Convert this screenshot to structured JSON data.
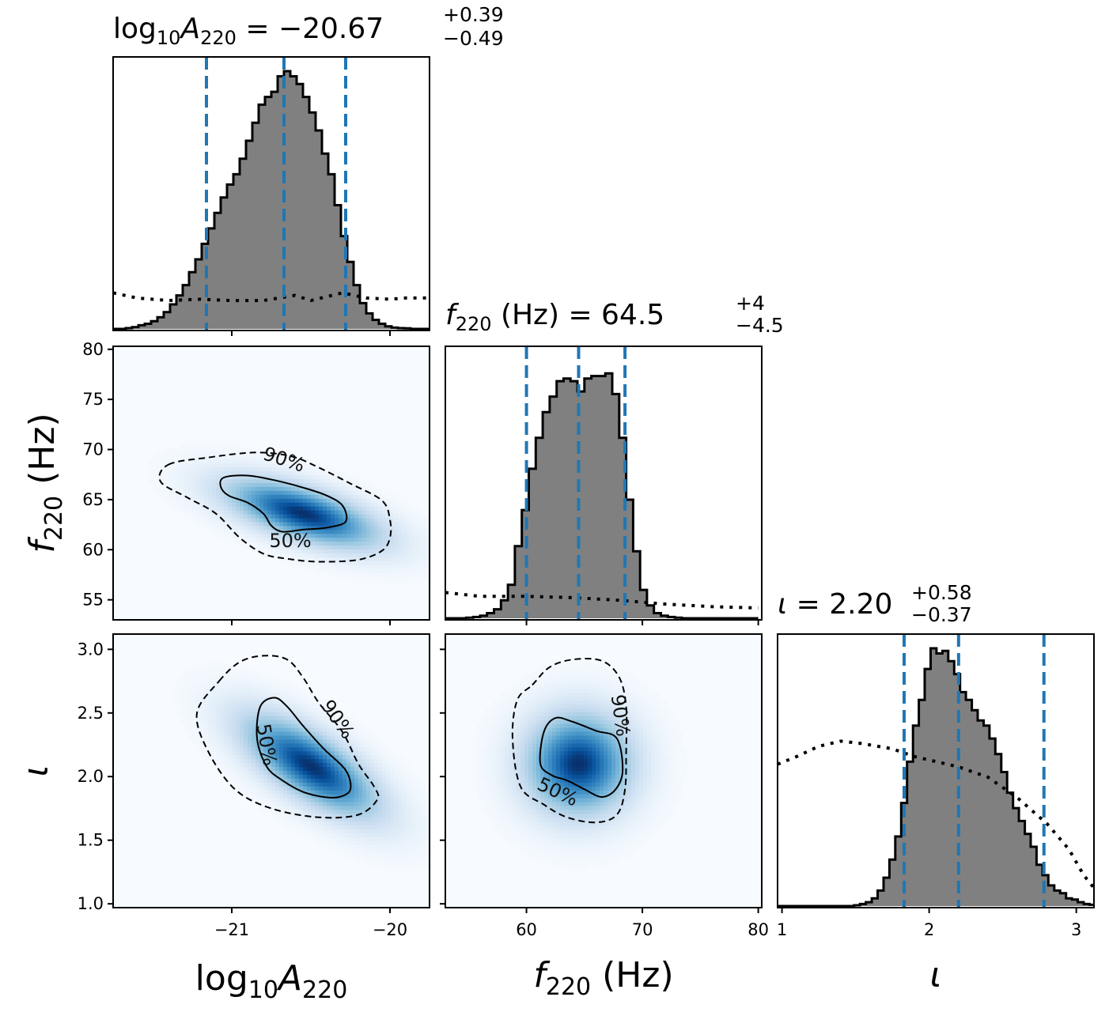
{
  "colors": {
    "hist_fill": "#808080",
    "hist_edge": "#000000",
    "quantile_line": "#1f77b4",
    "density_low": "#f7fbff",
    "density_high": "#08306b"
  },
  "chart_data": {
    "type": "corner",
    "parameters": [
      {
        "id": "logA",
        "title_lhs": "log",
        "title_sub1": "10",
        "title_sym": "A",
        "title_sub2": "220",
        "title_eq": " = −20.67",
        "title_sup": "+0.39",
        "title_inf": "−0.49",
        "axis_label_lhs": "log",
        "axis_label_sub1": "10",
        "axis_label_sym": "A",
        "axis_label_sub2": "220",
        "range": [
          -21.75,
          -19.75
        ],
        "ticks": [
          -21,
          -20
        ],
        "tick_labels": [
          "−21",
          "−20"
        ],
        "quantiles": [
          -21.16,
          -20.67,
          -20.28
        ],
        "hist_bins": [
          -21.75,
          -21.71,
          -21.67,
          -21.63,
          -21.59,
          -21.55,
          -21.51,
          -21.47,
          -21.43,
          -21.39,
          -21.35,
          -21.31,
          -21.27,
          -21.23,
          -21.19,
          -21.15,
          -21.11,
          -21.07,
          -21.03,
          -20.99,
          -20.95,
          -20.91,
          -20.87,
          -20.83,
          -20.79,
          -20.75,
          -20.71,
          -20.67,
          -20.63,
          -20.59,
          -20.55,
          -20.51,
          -20.47,
          -20.43,
          -20.39,
          -20.35,
          -20.31,
          -20.27,
          -20.23,
          -20.19,
          -20.15,
          -20.11,
          -20.07,
          -20.03,
          -19.99,
          -19.95,
          -19.91,
          -19.87,
          -19.83,
          -19.79,
          -19.75
        ],
        "hist_counts": [
          0.0,
          0.0,
          0.003,
          0.007,
          0.014,
          0.02,
          0.03,
          0.045,
          0.065,
          0.095,
          0.13,
          0.17,
          0.22,
          0.27,
          0.33,
          0.39,
          0.45,
          0.51,
          0.56,
          0.6,
          0.66,
          0.73,
          0.8,
          0.87,
          0.9,
          0.92,
          0.98,
          1.0,
          0.98,
          0.95,
          0.9,
          0.84,
          0.77,
          0.68,
          0.6,
          0.48,
          0.36,
          0.26,
          0.17,
          0.1,
          0.06,
          0.035,
          0.02,
          0.01,
          0.005,
          0.003,
          0.002,
          0.0,
          0.0,
          0.0
        ],
        "prior": [
          [
            -21.75,
            0.14
          ],
          [
            -21.6,
            0.12
          ],
          [
            -21.4,
            0.11
          ],
          [
            -21.2,
            0.115
          ],
          [
            -21.0,
            0.11
          ],
          [
            -20.8,
            0.11
          ],
          [
            -20.6,
            0.13
          ],
          [
            -20.5,
            0.11
          ],
          [
            -20.3,
            0.14
          ],
          [
            -20.15,
            0.12
          ],
          [
            -20.0,
            0.115
          ],
          [
            -19.9,
            0.12
          ],
          [
            -19.75,
            0.12
          ]
        ]
      },
      {
        "id": "f220",
        "title_lhs": "",
        "title_sub1": "",
        "title_sym": "f",
        "title_sub2": "220",
        "title_eq": " (Hz) = 64.5",
        "title_sup": "+4",
        "title_inf": "−4.5",
        "axis_label_lhs": "",
        "axis_label_sub1": "",
        "axis_label_sym": "f",
        "axis_label_sub2": "220",
        "axis_label_rest": " (Hz)",
        "range": [
          53,
          80.3
        ],
        "ticks": [
          60,
          70,
          80
        ],
        "tick_labels": [
          "60",
          "70",
          "80"
        ],
        "y_ticks": [
          55,
          60,
          65,
          70,
          75,
          80
        ],
        "y_tick_labels": [
          "55",
          "60",
          "65",
          "70",
          "75",
          "80"
        ],
        "quantiles": [
          60.0,
          64.5,
          68.5
        ],
        "hist_bins": [
          53.0,
          53.6,
          54.2,
          54.8,
          55.4,
          56.0,
          56.6,
          57.2,
          57.8,
          58.4,
          59.0,
          59.6,
          60.2,
          60.8,
          61.4,
          62.0,
          62.6,
          63.2,
          63.8,
          64.4,
          65.0,
          65.6,
          66.2,
          66.8,
          67.4,
          68.0,
          68.6,
          69.2,
          69.8,
          70.4,
          71.0,
          71.6,
          72.2,
          72.8,
          73.4,
          74.0,
          74.6,
          75.2,
          75.8,
          76.4,
          77.0,
          77.6,
          78.2,
          78.8,
          79.4,
          80.0
        ],
        "hist_counts": [
          0.0,
          0.0,
          0.0,
          0.002,
          0.005,
          0.01,
          0.02,
          0.035,
          0.07,
          0.13,
          0.28,
          0.42,
          0.58,
          0.7,
          0.8,
          0.86,
          0.92,
          0.93,
          0.92,
          0.88,
          0.93,
          0.94,
          0.94,
          0.95,
          0.87,
          0.7,
          0.46,
          0.26,
          0.11,
          0.05,
          0.02,
          0.01,
          0.005,
          0.002,
          0.0,
          0.0,
          0.0,
          0.0,
          0.0,
          0.0,
          0.0,
          0.0,
          0.0,
          0.0,
          0.0
        ],
        "prior": [
          [
            53.0,
            0.1
          ],
          [
            56.0,
            0.085
          ],
          [
            60.0,
            0.085
          ],
          [
            64.0,
            0.08
          ],
          [
            68.0,
            0.07
          ],
          [
            72.0,
            0.055
          ],
          [
            76.0,
            0.045
          ],
          [
            80.0,
            0.04
          ]
        ]
      },
      {
        "id": "iota",
        "title_lhs": "",
        "title_sub1": "",
        "title_sym": "ι",
        "title_sub2": "",
        "title_eq": " = 2.20",
        "title_sup": "+0.58",
        "title_inf": "−0.37",
        "axis_label_lhs": "",
        "axis_label_sub1": "",
        "axis_label_sym": "ι",
        "axis_label_sub2": "",
        "range": [
          0.97,
          3.12
        ],
        "ticks": [
          1,
          2,
          3
        ],
        "tick_labels": [
          "1",
          "2",
          "3"
        ],
        "y_ticks": [
          1.0,
          1.5,
          2.0,
          2.5,
          3.0
        ],
        "y_tick_labels": [
          "1.0",
          "1.5",
          "2.0",
          "2.5",
          "3.0"
        ],
        "quantiles": [
          1.83,
          2.2,
          2.78
        ],
        "hist_bins": [
          0.97,
          1.01,
          1.05,
          1.09,
          1.13,
          1.17,
          1.21,
          1.25,
          1.29,
          1.33,
          1.37,
          1.41,
          1.45,
          1.49,
          1.53,
          1.57,
          1.61,
          1.65,
          1.69,
          1.73,
          1.77,
          1.81,
          1.85,
          1.89,
          1.93,
          1.97,
          2.01,
          2.05,
          2.09,
          2.13,
          2.17,
          2.21,
          2.25,
          2.29,
          2.33,
          2.37,
          2.41,
          2.45,
          2.49,
          2.53,
          2.57,
          2.61,
          2.65,
          2.69,
          2.73,
          2.77,
          2.81,
          2.85,
          2.89,
          2.93,
          2.97,
          3.01,
          3.05,
          3.09,
          3.12
        ],
        "hist_counts": [
          0.0,
          0.0,
          0.0,
          0.0,
          0.0,
          0.0,
          0.0,
          0.0,
          0.0,
          0.0,
          0.0,
          0.0,
          0.0,
          0.003,
          0.008,
          0.015,
          0.03,
          0.06,
          0.11,
          0.18,
          0.27,
          0.4,
          0.56,
          0.7,
          0.8,
          0.92,
          1.0,
          0.98,
          0.99,
          0.95,
          0.9,
          0.83,
          0.8,
          0.76,
          0.72,
          0.7,
          0.65,
          0.59,
          0.52,
          0.44,
          0.38,
          0.33,
          0.28,
          0.23,
          0.16,
          0.12,
          0.08,
          0.06,
          0.05,
          0.03,
          0.025,
          0.015,
          0.008,
          0.005
        ],
        "prior": [
          [
            0.97,
            0.55
          ],
          [
            1.1,
            0.58
          ],
          [
            1.25,
            0.62
          ],
          [
            1.4,
            0.64
          ],
          [
            1.55,
            0.63
          ],
          [
            1.65,
            0.62
          ],
          [
            1.75,
            0.61
          ],
          [
            1.9,
            0.58
          ],
          [
            2.05,
            0.56
          ],
          [
            2.2,
            0.54
          ],
          [
            2.4,
            0.5
          ],
          [
            2.6,
            0.42
          ],
          [
            2.8,
            0.32
          ],
          [
            2.95,
            0.22
          ],
          [
            3.05,
            0.12
          ],
          [
            3.12,
            0.07
          ]
        ]
      }
    ],
    "pairs": [
      {
        "x_param": "logA",
        "y_param": "f220",
        "density": {
          "center": [
            -20.55,
            63.6
          ],
          "sigma": [
            0.34,
            2.4
          ],
          "corr": -0.62
        },
        "contours": [
          {
            "level": "50%",
            "label": "50%",
            "label_at": [
              -20.63,
              60.9
            ],
            "label_rotation": 0,
            "points": [
              [
                -21.05,
                67.2
              ],
              [
                -20.9,
                67.4
              ],
              [
                -20.72,
                66.9
              ],
              [
                -20.55,
                66.2
              ],
              [
                -20.4,
                65.4
              ],
              [
                -20.3,
                64.4
              ],
              [
                -20.28,
                62.8
              ],
              [
                -20.4,
                62.2
              ],
              [
                -20.55,
                62.0
              ],
              [
                -20.68,
                61.8
              ],
              [
                -20.75,
                62.4
              ],
              [
                -20.8,
                63.6
              ],
              [
                -20.9,
                64.7
              ],
              [
                -21.02,
                65.4
              ],
              [
                -21.07,
                66.3
              ],
              [
                -21.05,
                67.2
              ]
            ]
          },
          {
            "level": "90%",
            "label": "90%",
            "label_at": [
              -20.67,
              69.0
            ],
            "label_rotation": 18,
            "points": [
              [
                -21.4,
                68.5
              ],
              [
                -21.15,
                69.2
              ],
              [
                -20.85,
                69.7
              ],
              [
                -20.62,
                69.3
              ],
              [
                -20.45,
                68.2
              ],
              [
                -20.25,
                66.6
              ],
              [
                -20.05,
                64.9
              ],
              [
                -20.0,
                63.0
              ],
              [
                -20.0,
                61.2
              ],
              [
                -20.05,
                59.9
              ],
              [
                -20.2,
                59.0
              ],
              [
                -20.45,
                58.8
              ],
              [
                -20.65,
                59.1
              ],
              [
                -20.8,
                59.6
              ],
              [
                -20.95,
                61.2
              ],
              [
                -21.1,
                63.6
              ],
              [
                -21.28,
                65.2
              ],
              [
                -21.45,
                66.8
              ],
              [
                -21.4,
                68.5
              ]
            ]
          }
        ]
      },
      {
        "x_param": "logA",
        "y_param": "iota",
        "density": {
          "center": [
            -20.5,
            2.08
          ],
          "sigma": [
            0.3,
            0.28
          ],
          "corr": -0.7
        },
        "contours": [
          {
            "level": "50%",
            "label": "50%",
            "label_at": [
              -20.78,
              2.25
            ],
            "label_rotation": 80,
            "points": [
              [
                -20.82,
                2.55
              ],
              [
                -20.73,
                2.62
              ],
              [
                -20.65,
                2.55
              ],
              [
                -20.55,
                2.4
              ],
              [
                -20.42,
                2.22
              ],
              [
                -20.28,
                2.05
              ],
              [
                -20.25,
                1.9
              ],
              [
                -20.32,
                1.84
              ],
              [
                -20.42,
                1.84
              ],
              [
                -20.55,
                1.88
              ],
              [
                -20.68,
                1.97
              ],
              [
                -20.78,
                2.08
              ],
              [
                -20.84,
                2.3
              ],
              [
                -20.82,
                2.55
              ]
            ]
          },
          {
            "level": "90%",
            "label": "90%",
            "label_at": [
              -20.33,
              2.45
            ],
            "label_rotation": 55,
            "points": [
              [
                -21.08,
                2.75
              ],
              [
                -20.95,
                2.9
              ],
              [
                -20.8,
                2.95
              ],
              [
                -20.65,
                2.92
              ],
              [
                -20.55,
                2.78
              ],
              [
                -20.45,
                2.58
              ],
              [
                -20.3,
                2.35
              ],
              [
                -20.2,
                2.1
              ],
              [
                -20.1,
                1.92
              ],
              [
                -20.08,
                1.82
              ],
              [
                -20.2,
                1.7
              ],
              [
                -20.45,
                1.68
              ],
              [
                -20.75,
                1.75
              ],
              [
                -20.98,
                1.9
              ],
              [
                -21.15,
                2.2
              ],
              [
                -21.22,
                2.5
              ],
              [
                -21.08,
                2.75
              ]
            ]
          }
        ]
      },
      {
        "x_param": "f220",
        "y_param": "iota",
        "density": {
          "center": [
            64.5,
            2.1
          ],
          "sigma": [
            3.2,
            0.28
          ],
          "corr": 0.0
        },
        "contours": [
          {
            "level": "50%",
            "label": "50%",
            "label_at": [
              62.7,
              1.88
            ],
            "label_rotation": 25,
            "points": [
              [
                61.5,
                2.35
              ],
              [
                62.5,
                2.46
              ],
              [
                64.0,
                2.43
              ],
              [
                66.0,
                2.36
              ],
              [
                67.8,
                2.3
              ],
              [
                68.3,
                2.05
              ],
              [
                67.7,
                1.9
              ],
              [
                66.5,
                1.84
              ],
              [
                65.0,
                1.9
              ],
              [
                63.5,
                1.97
              ],
              [
                62.2,
                2.01
              ],
              [
                61.2,
                2.1
              ],
              [
                61.5,
                2.35
              ]
            ]
          },
          {
            "level": "90%",
            "label": "90%",
            "label_at": [
              68.1,
              2.48
            ],
            "label_rotation": 82,
            "points": [
              [
                60.5,
                2.72
              ],
              [
                62.0,
                2.86
              ],
              [
                64.0,
                2.92
              ],
              [
                66.5,
                2.91
              ],
              [
                68.0,
                2.78
              ],
              [
                68.6,
                2.55
              ],
              [
                68.6,
                2.2
              ],
              [
                68.5,
                1.9
              ],
              [
                67.8,
                1.7
              ],
              [
                66.0,
                1.64
              ],
              [
                63.5,
                1.68
              ],
              [
                61.5,
                1.78
              ],
              [
                59.5,
                1.92
              ],
              [
                58.8,
                2.3
              ],
              [
                59.2,
                2.6
              ],
              [
                60.5,
                2.72
              ]
            ]
          }
        ]
      }
    ]
  }
}
